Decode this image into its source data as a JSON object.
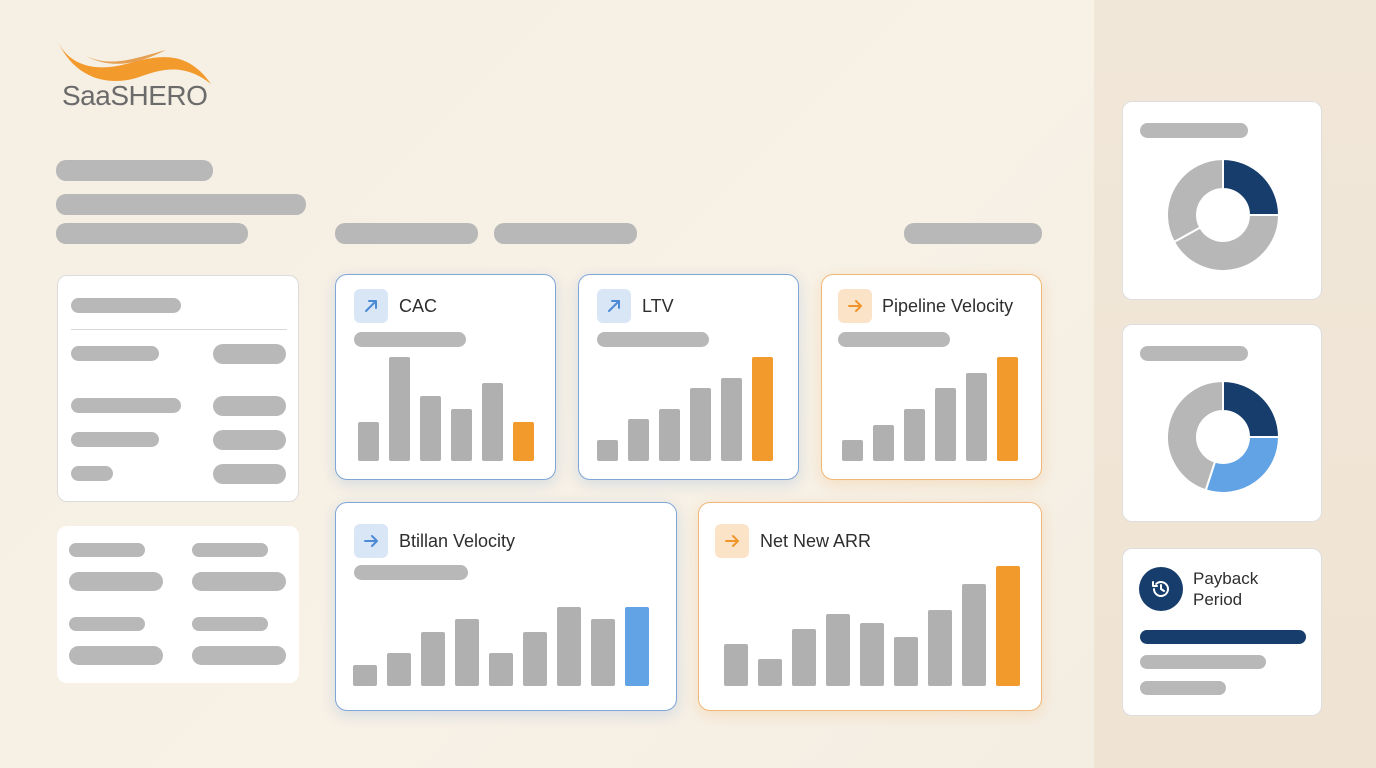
{
  "brand": {
    "name": "SaaSHERO"
  },
  "colors": {
    "accent_orange": "#f39a2c",
    "accent_blue": "#62a3e6",
    "navy": "#163d6b",
    "bar_gray": "#b0b0b0"
  },
  "cards": {
    "cac": {
      "title": "CAC",
      "icon": "arrow-up-right-icon",
      "values": [
        3,
        8,
        5,
        4,
        6,
        3
      ],
      "highlight": 5
    },
    "ltv": {
      "title": "LTV",
      "icon": "arrow-up-right-icon",
      "values": [
        2,
        4,
        5,
        7,
        8,
        10
      ],
      "highlight": 5
    },
    "pipeline": {
      "title": "Pipeline Velocity",
      "icon": "arrow-right-icon",
      "values": [
        2,
        3.5,
        5,
        7,
        8.5,
        10
      ],
      "highlight": 5
    },
    "btillan": {
      "title": "Btillan Velocity",
      "icon": "arrow-right-icon",
      "values": [
        2.5,
        4,
        6.5,
        8,
        4,
        6.5,
        9.5,
        8,
        9.5
      ],
      "highlight": 8
    },
    "arr": {
      "title": "Net New ARR",
      "icon": "arrow-right-icon",
      "values": [
        3.5,
        2.3,
        4.8,
        6.1,
        5.3,
        4.1,
        6.4,
        8.6,
        10.1
      ],
      "highlight": 8
    }
  },
  "sidebar": {
    "donut1": {
      "slices": [
        0.25,
        0.42,
        0.33
      ],
      "colors": [
        "#163d6b",
        "#b7b7b7",
        "#b7b7b7"
      ]
    },
    "donut2": {
      "slices": [
        0.25,
        0.3,
        0.45
      ],
      "colors": [
        "#163d6b",
        "#62a3e6",
        "#b7b7b7"
      ]
    },
    "payback": {
      "title_line1": "Payback",
      "title_line2": "Period",
      "icon": "history-clock-icon"
    }
  }
}
